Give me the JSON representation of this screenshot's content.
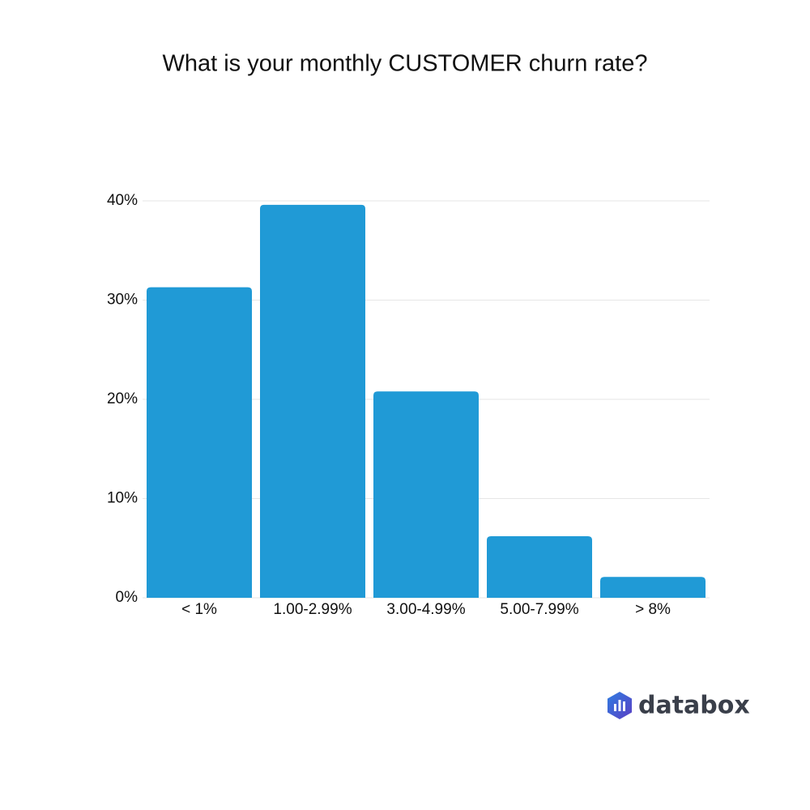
{
  "chart_data": {
    "type": "bar",
    "title": "What is your monthly CUSTOMER churn rate?",
    "categories": [
      "< 1%",
      "1.00-2.99%",
      "3.00-4.99%",
      "5.00-7.99%",
      "> 8%"
    ],
    "values": [
      31.3,
      39.6,
      20.8,
      6.2,
      2.1
    ],
    "color": "#209ad6",
    "ylim": [
      0,
      40
    ],
    "yticks": [
      {
        "value": 0,
        "label": "0%"
      },
      {
        "value": 10,
        "label": "10%"
      },
      {
        "value": 20,
        "label": "20%"
      },
      {
        "value": 30,
        "label": "30%"
      },
      {
        "value": 40,
        "label": "40%"
      }
    ],
    "grid": true,
    "watermark": "databox"
  }
}
